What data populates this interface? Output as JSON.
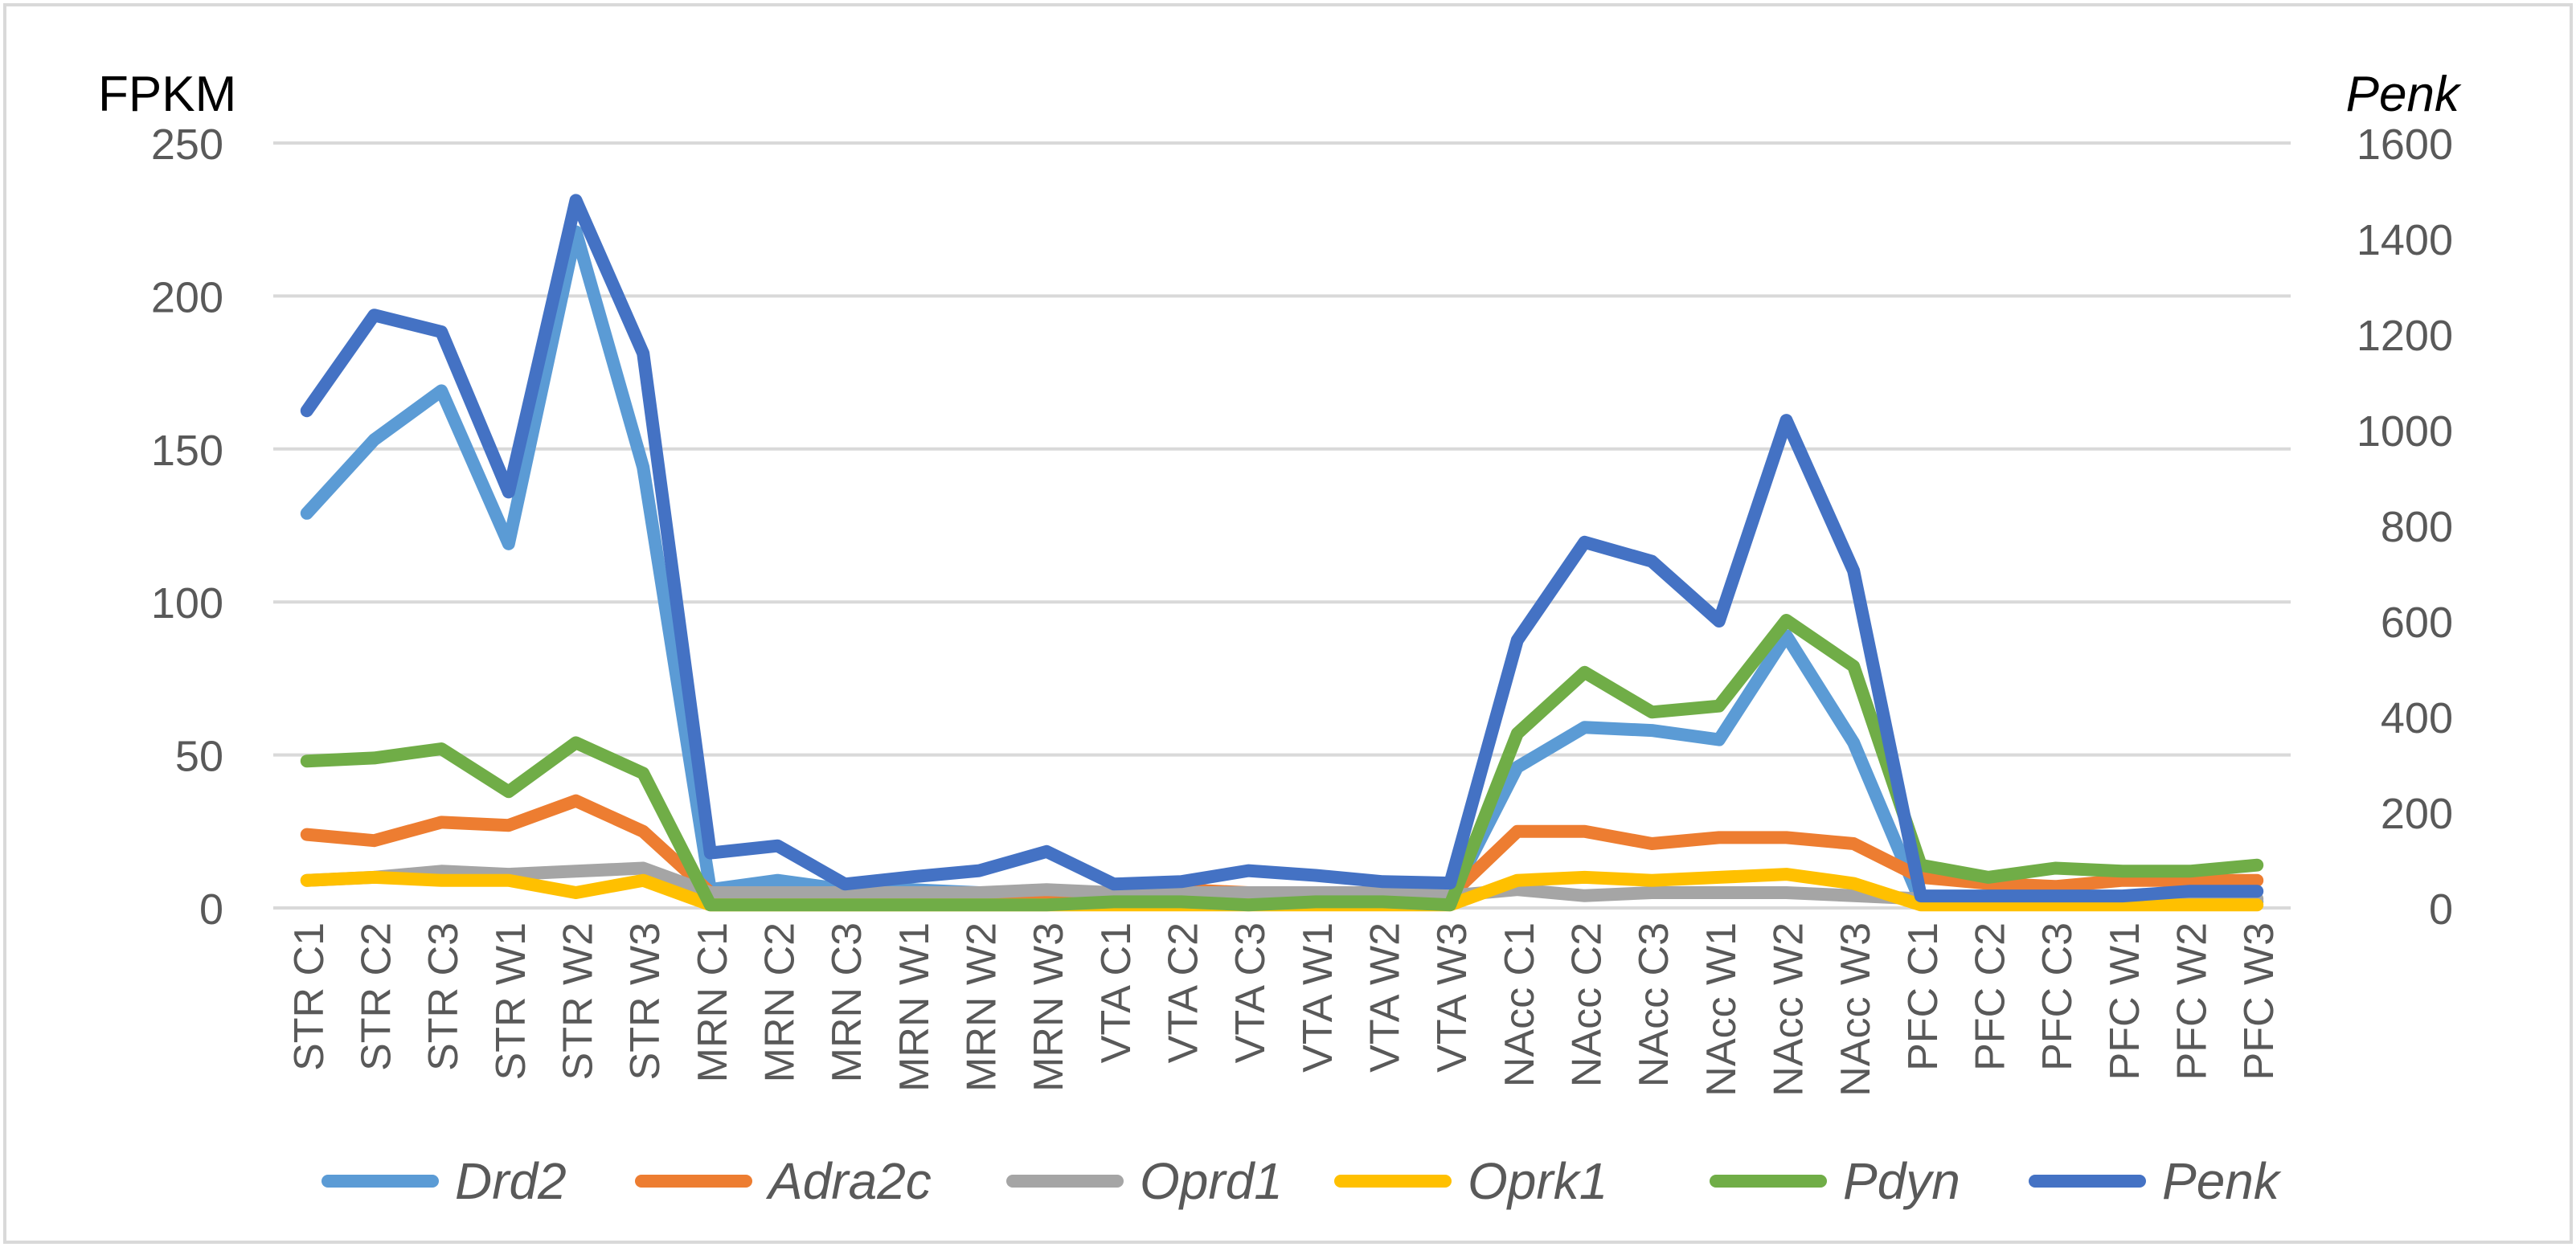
{
  "chart_data": {
    "type": "line",
    "left_axis_label": "FPKM",
    "right_axis_label": "Penk",
    "left_ylim": [
      0,
      250
    ],
    "right_ylim": [
      0,
      1600
    ],
    "left_ticks": [
      0,
      50,
      100,
      150,
      200,
      250
    ],
    "right_ticks": [
      0,
      200,
      400,
      600,
      800,
      1000,
      1200,
      1400,
      1600
    ],
    "grid": true,
    "legend_position": "bottom",
    "categories": [
      "STR C1",
      "STR C2",
      "STR C3",
      "STR W1",
      "STR W2",
      "STR W3",
      "MRN C1",
      "MRN C2",
      "MRN C3",
      "MRN W1",
      "MRN W2",
      "MRN W3",
      "VTA C1",
      "VTA C2",
      "VTA C3",
      "VTA W1",
      "VTA W2",
      "VTA W3",
      "NAcc C1",
      "NAcc C2",
      "NAcc C3",
      "NAcc W1",
      "NAcc W2",
      "NAcc W3",
      "PFC C1",
      "PFC C2",
      "PFC C3",
      "PFC W1",
      "PFC W2",
      "PFC W3"
    ],
    "series": [
      {
        "name": "Drd2",
        "color": "#5B9BD5",
        "axis": "left",
        "values": [
          129,
          153,
          169,
          119,
          221,
          144,
          6,
          9,
          6,
          6,
          5,
          5,
          5,
          4,
          4,
          4,
          4,
          3,
          46,
          59,
          58,
          55,
          89,
          54,
          2,
          2,
          2,
          2,
          2,
          2
        ]
      },
      {
        "name": "Adra2c",
        "color": "#ED7D31",
        "axis": "left",
        "values": [
          24,
          22,
          28,
          27,
          35,
          25,
          5,
          4,
          4,
          4,
          4,
          4,
          5,
          6,
          5,
          5,
          5,
          4,
          25,
          25,
          21,
          23,
          23,
          21,
          10,
          8,
          7,
          9,
          9,
          9
        ]
      },
      {
        "name": "Oprd1",
        "color": "#A5A5A5",
        "axis": "left",
        "values": [
          9,
          10,
          12,
          11,
          12,
          13,
          5,
          5,
          5,
          5,
          5,
          6,
          5,
          5,
          5,
          5,
          5,
          4,
          6,
          4,
          5,
          5,
          5,
          4,
          3,
          3,
          3,
          3,
          3,
          3
        ]
      },
      {
        "name": "Oprk1",
        "color": "#FFC000",
        "axis": "left",
        "values": [
          9,
          10,
          9,
          9,
          5,
          9,
          1,
          1,
          1,
          1,
          1,
          1,
          1,
          1,
          1,
          1,
          1,
          1,
          9,
          10,
          9,
          10,
          11,
          8,
          1,
          1,
          1,
          1,
          1,
          1
        ]
      },
      {
        "name": "Pdyn",
        "color": "#70AD47",
        "axis": "left",
        "values": [
          48,
          49,
          52,
          38,
          54,
          44,
          1,
          1,
          1,
          1,
          1,
          1,
          2,
          2,
          1,
          2,
          2,
          1,
          57,
          77,
          64,
          66,
          94,
          79,
          14,
          10,
          13,
          12,
          12,
          14
        ]
      },
      {
        "name": "Penk",
        "color": "#4472C4",
        "axis": "right",
        "values": [
          1040,
          1240,
          1205,
          870,
          1480,
          1160,
          115,
          130,
          50,
          65,
          78,
          118,
          50,
          55,
          78,
          68,
          55,
          52,
          560,
          765,
          725,
          600,
          1020,
          705,
          25,
          25,
          25,
          25,
          35,
          35
        ]
      }
    ]
  }
}
